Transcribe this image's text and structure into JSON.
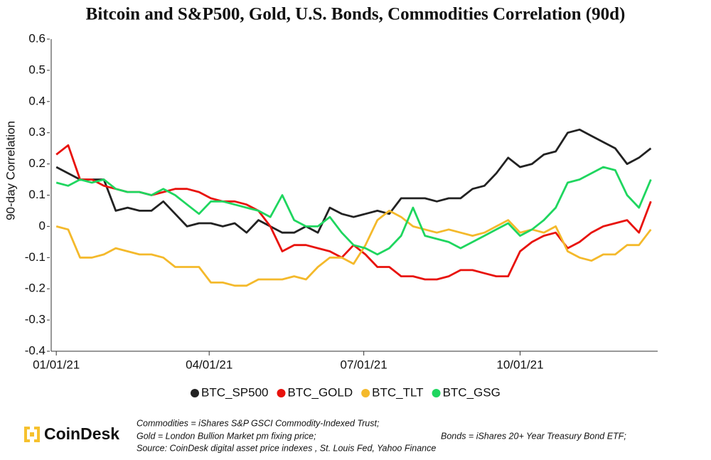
{
  "chart_data": {
    "type": "line",
    "title": "Bitcoin and S&P500, Gold, U.S. Bonds, Commodities Correlation (90d)",
    "y_label": "90-day Correlation",
    "x": [
      "2021-01-01",
      "2021-01-08",
      "2021-01-15",
      "2021-01-22",
      "2021-01-29",
      "2021-02-05",
      "2021-02-12",
      "2021-02-19",
      "2021-02-26",
      "2021-03-05",
      "2021-03-12",
      "2021-03-19",
      "2021-03-26",
      "2021-04-02",
      "2021-04-09",
      "2021-04-16",
      "2021-04-23",
      "2021-04-30",
      "2021-05-07",
      "2021-05-14",
      "2021-05-21",
      "2021-05-28",
      "2021-06-04",
      "2021-06-11",
      "2021-06-18",
      "2021-06-25",
      "2021-07-02",
      "2021-07-09",
      "2021-07-16",
      "2021-07-23",
      "2021-07-30",
      "2021-08-06",
      "2021-08-13",
      "2021-08-20",
      "2021-08-27",
      "2021-09-03",
      "2021-09-10",
      "2021-09-17",
      "2021-09-24",
      "2021-10-01",
      "2021-10-08",
      "2021-10-15",
      "2021-10-22",
      "2021-10-29",
      "2021-11-05",
      "2021-11-12",
      "2021-11-19",
      "2021-11-26",
      "2021-12-03",
      "2021-12-10",
      "2021-12-17"
    ],
    "xlim": [
      "2020-12-29",
      "2021-12-21"
    ],
    "xticks": [
      {
        "value": "2021-01-01",
        "label": "01/01/21"
      },
      {
        "value": "2021-04-01",
        "label": "04/01/21"
      },
      {
        "value": "2021-07-01",
        "label": "07/01/21"
      },
      {
        "value": "2021-10-01",
        "label": "10/01/21"
      }
    ],
    "ylim": [
      -0.4,
      0.6
    ],
    "yticks": [
      -0.4,
      -0.3,
      -0.2,
      -0.1,
      0,
      0.1,
      0.2,
      0.3,
      0.4,
      0.5,
      0.6
    ],
    "legend": "bottom",
    "series": [
      {
        "name": "BTC_SP500",
        "color": "#222222",
        "values": [
          0.19,
          0.17,
          0.15,
          0.15,
          0.15,
          0.05,
          0.06,
          0.05,
          0.05,
          0.08,
          0.04,
          0.0,
          0.01,
          0.01,
          0.0,
          0.01,
          -0.02,
          0.02,
          0.0,
          -0.02,
          -0.02,
          0.0,
          -0.02,
          0.06,
          0.04,
          0.03,
          0.04,
          0.05,
          0.04,
          0.09,
          0.09,
          0.09,
          0.08,
          0.09,
          0.09,
          0.12,
          0.13,
          0.17,
          0.22,
          0.19,
          0.2,
          0.23,
          0.24,
          0.3,
          0.31,
          0.29,
          0.27,
          0.25,
          0.2,
          0.22,
          0.25
        ]
      },
      {
        "name": "BTC_GOLD",
        "color": "#e8120c",
        "values": [
          0.23,
          0.26,
          0.15,
          0.15,
          0.13,
          0.12,
          0.11,
          0.11,
          0.1,
          0.11,
          0.12,
          0.12,
          0.11,
          0.09,
          0.08,
          0.08,
          0.07,
          0.05,
          0.0,
          -0.08,
          -0.06,
          -0.06,
          -0.07,
          -0.08,
          -0.1,
          -0.06,
          -0.09,
          -0.13,
          -0.13,
          -0.16,
          -0.16,
          -0.17,
          -0.17,
          -0.16,
          -0.14,
          -0.14,
          -0.15,
          -0.16,
          -0.16,
          -0.08,
          -0.05,
          -0.03,
          -0.02,
          -0.07,
          -0.05,
          -0.02,
          0.0,
          0.01,
          0.02,
          -0.02,
          0.08
        ]
      },
      {
        "name": "BTC_TLT",
        "color": "#f4b92b",
        "values": [
          0.0,
          -0.01,
          -0.1,
          -0.1,
          -0.09,
          -0.07,
          -0.08,
          -0.09,
          -0.09,
          -0.1,
          -0.13,
          -0.13,
          -0.13,
          -0.18,
          -0.18,
          -0.19,
          -0.19,
          -0.17,
          -0.17,
          -0.17,
          -0.16,
          -0.17,
          -0.13,
          -0.1,
          -0.1,
          -0.12,
          -0.06,
          0.02,
          0.05,
          0.03,
          0.0,
          -0.01,
          -0.02,
          -0.01,
          -0.02,
          -0.03,
          -0.02,
          0.0,
          0.02,
          -0.02,
          -0.01,
          -0.02,
          0.0,
          -0.08,
          -0.1,
          -0.11,
          -0.09,
          -0.09,
          -0.06,
          -0.06,
          -0.01
        ]
      },
      {
        "name": "BTC_GSG",
        "color": "#1fd65f",
        "values": [
          0.14,
          0.13,
          0.15,
          0.14,
          0.15,
          0.12,
          0.11,
          0.11,
          0.1,
          0.12,
          0.1,
          0.07,
          0.04,
          0.08,
          0.08,
          0.07,
          0.06,
          0.05,
          0.03,
          0.1,
          0.02,
          0.0,
          0.0,
          0.03,
          -0.02,
          -0.06,
          -0.07,
          -0.09,
          -0.07,
          -0.03,
          0.06,
          -0.03,
          -0.04,
          -0.05,
          -0.07,
          -0.05,
          -0.03,
          -0.01,
          0.01,
          -0.03,
          -0.01,
          0.02,
          0.06,
          0.14,
          0.15,
          0.17,
          0.19,
          0.18,
          0.1,
          0.06,
          0.15
        ]
      }
    ],
    "logo": "CoinDesk",
    "notes": [
      "Commodities = iShares S&P GSCI Commodity-Indexed Trust;",
      "Gold = London Bullion Market pm fixing price;",
      "Bonds = iShares 20+ Year Treasury Bond ETF;",
      "Source: CoinDesk digital asset price indexes , St. Louis Fed, Yahoo Finance"
    ]
  }
}
